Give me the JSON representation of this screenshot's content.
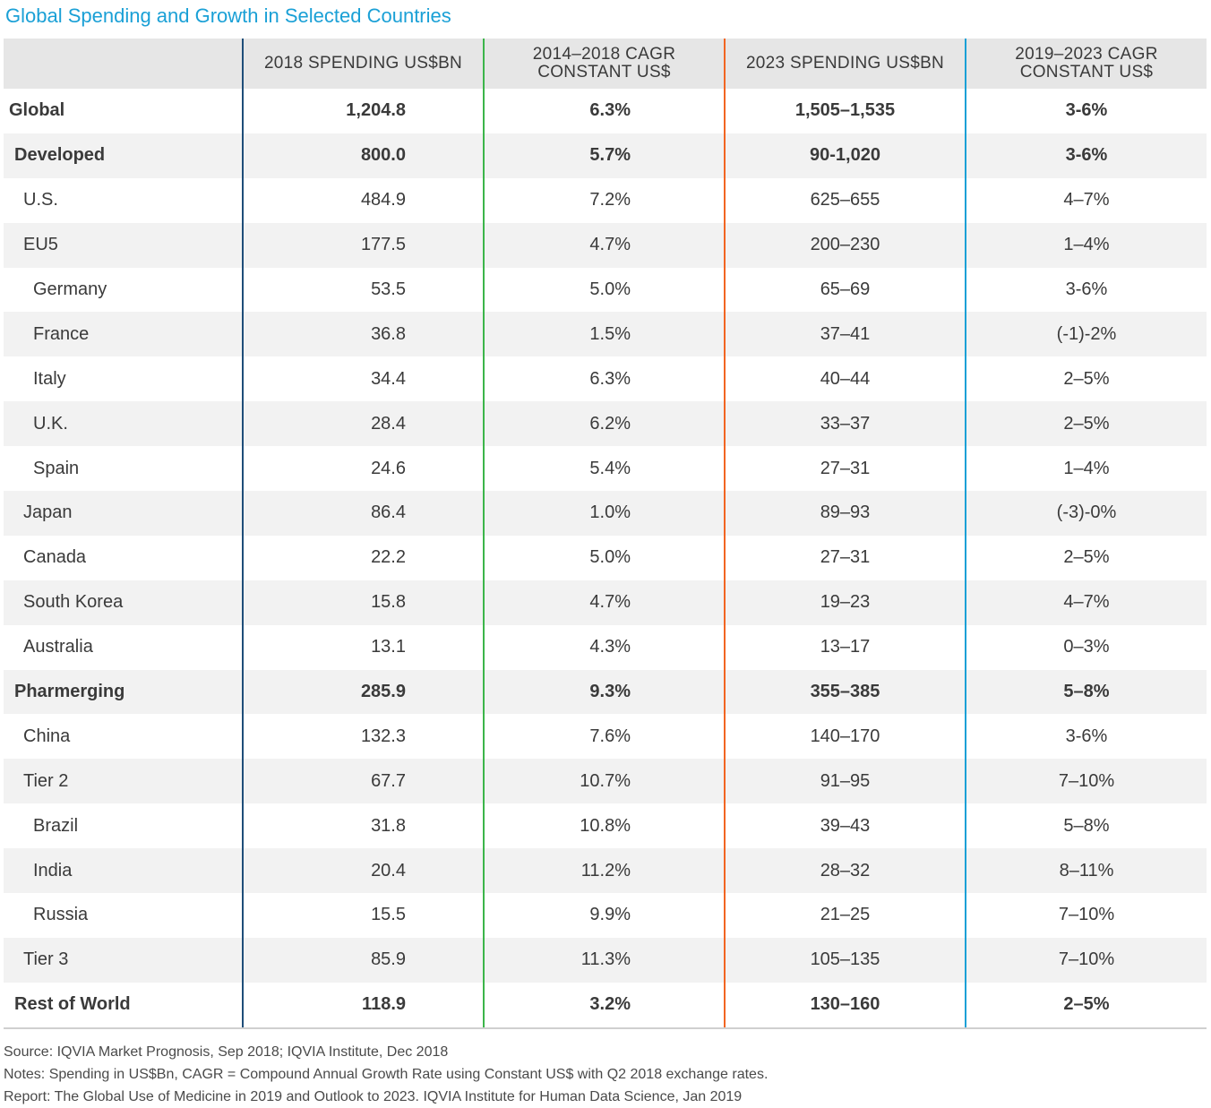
{
  "title": "Global Spending and Growth in Selected Countries",
  "chart_data": {
    "type": "table",
    "title": "Global Spending and Growth in Selected Countries",
    "columns": [
      "",
      "2018 SPENDING US$BN",
      "2014–2018 CAGR CONSTANT US$",
      "2023 SPENDING US$BN",
      "2019–2023 CAGR CONSTANT US$"
    ],
    "rows": [
      {
        "label": "Global",
        "level": 0,
        "bold": true,
        "values": [
          "1,204.8",
          "6.3%",
          "1,505–1,535",
          "3-6%"
        ]
      },
      {
        "label": "Developed",
        "level": 1,
        "bold": true,
        "values": [
          "800.0",
          "5.7%",
          "90-1,020",
          "3-6%"
        ]
      },
      {
        "label": "U.S.",
        "level": 2,
        "bold": false,
        "values": [
          "484.9",
          "7.2%",
          "625–655",
          "4–7%"
        ]
      },
      {
        "label": "EU5",
        "level": 2,
        "bold": false,
        "values": [
          "177.5",
          "4.7%",
          "200–230",
          "1–4%"
        ]
      },
      {
        "label": "Germany",
        "level": 3,
        "bold": false,
        "values": [
          "53.5",
          "5.0%",
          "65–69",
          "3-6%"
        ]
      },
      {
        "label": "France",
        "level": 3,
        "bold": false,
        "values": [
          "36.8",
          "1.5%",
          "37–41",
          "(-1)-2%"
        ]
      },
      {
        "label": "Italy",
        "level": 3,
        "bold": false,
        "values": [
          "34.4",
          "6.3%",
          "40–44",
          "2–5%"
        ]
      },
      {
        "label": "U.K.",
        "level": 3,
        "bold": false,
        "values": [
          "28.4",
          "6.2%",
          "33–37",
          "2–5%"
        ]
      },
      {
        "label": "Spain",
        "level": 3,
        "bold": false,
        "values": [
          "24.6",
          "5.4%",
          "27–31",
          "1–4%"
        ]
      },
      {
        "label": "Japan",
        "level": 2,
        "bold": false,
        "values": [
          "86.4",
          "1.0%",
          "89–93",
          "(-3)-0%"
        ]
      },
      {
        "label": "Canada",
        "level": 2,
        "bold": false,
        "values": [
          "22.2",
          "5.0%",
          "27–31",
          "2–5%"
        ]
      },
      {
        "label": "South Korea",
        "level": 2,
        "bold": false,
        "values": [
          "15.8",
          "4.7%",
          "19–23",
          "4–7%"
        ]
      },
      {
        "label": "Australia",
        "level": 2,
        "bold": false,
        "values": [
          "13.1",
          "4.3%",
          "13–17",
          "0–3%"
        ]
      },
      {
        "label": "Pharmerging",
        "level": 1,
        "bold": true,
        "values": [
          "285.9",
          "9.3%",
          "355–385",
          "5–8%"
        ]
      },
      {
        "label": "China",
        "level": 2,
        "bold": false,
        "values": [
          "132.3",
          "7.6%",
          "140–170",
          "3-6%"
        ]
      },
      {
        "label": "Tier 2",
        "level": 2,
        "bold": false,
        "values": [
          "67.7",
          "10.7%",
          "91–95",
          "7–10%"
        ]
      },
      {
        "label": "Brazil",
        "level": 3,
        "bold": false,
        "values": [
          "31.8",
          "10.8%",
          "39–43",
          "5–8%"
        ]
      },
      {
        "label": "India",
        "level": 3,
        "bold": false,
        "values": [
          "20.4",
          "11.2%",
          "28–32",
          "8–11%"
        ]
      },
      {
        "label": "Russia",
        "level": 3,
        "bold": false,
        "values": [
          "15.5",
          "9.9%",
          "21–25",
          "7–10%"
        ]
      },
      {
        "label": "Tier 3",
        "level": 2,
        "bold": false,
        "values": [
          "85.9",
          "11.3%",
          "105–135",
          "7–10%"
        ]
      },
      {
        "label": "Rest of World",
        "level": 1,
        "bold": true,
        "values": [
          "118.9",
          "3.2%",
          "130–160",
          "2–5%"
        ]
      }
    ],
    "column_colors": [
      "#1f4e79",
      "#3cb54a",
      "#f26522",
      "#1aa0d6"
    ]
  },
  "notes": {
    "source": "Source: IQVIA Market Prognosis, Sep 2018; IQVIA Institute, Dec 2018",
    "notes": "Notes: Spending in US$Bn, CAGR = Compound Annual Growth Rate using Constant US$ with Q2 2018 exchange rates.",
    "report": "Report: The Global Use of Medicine in 2019 and Outlook to 2023. IQVIA Institute for Human Data Science, Jan 2019"
  }
}
